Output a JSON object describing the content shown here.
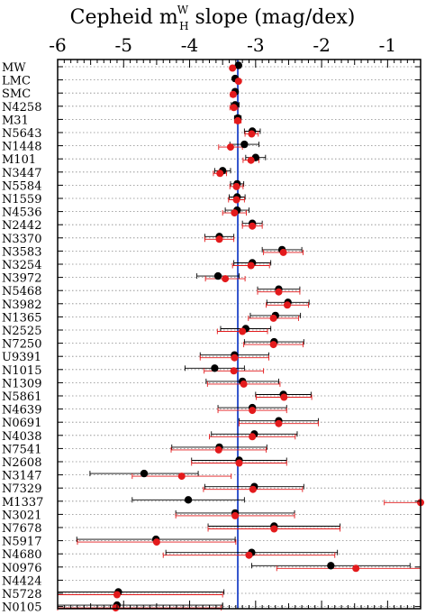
{
  "chart_data": {
    "type": "scatter",
    "title_parts": [
      "Cepheid m",
      "W",
      "H",
      " slope (mag/dex)"
    ],
    "xlim": [
      -6,
      -0.5
    ],
    "x_ticks": [
      "-6",
      "-5",
      "-4",
      "-3",
      "-2",
      "-1"
    ],
    "reference_line_x": -3.27,
    "grid": "dotted horizontal per galaxy",
    "colors": {
      "black": "#000000",
      "red": "#e31a1c",
      "line": "#3355cc",
      "grid": "#888888"
    },
    "categories": [
      "MW",
      "LMC",
      "SMC",
      "N4258",
      "M31",
      "N5643",
      "N1448",
      "M101",
      "N3447",
      "N5584",
      "N1559",
      "N4536",
      "N2442",
      "N3370",
      "N3583",
      "N3254",
      "N3972",
      "N5468",
      "N3982",
      "N1365",
      "N2525",
      "N7250",
      "U9391",
      "N1015",
      "N1309",
      "N5861",
      "N4639",
      "N0691",
      "N4038",
      "N7541",
      "N2608",
      "N3147",
      "N7329",
      "M1337",
      "N3021",
      "N7678",
      "N5917",
      "N4680",
      "N0976",
      "N4424",
      "N5728",
      "N0105"
    ],
    "series": [
      {
        "color": "black",
        "values": [
          -3.26,
          -3.31,
          -3.31,
          -3.31,
          -3.27,
          -3.05,
          -3.17,
          -3.0,
          -3.5,
          -3.28,
          -3.28,
          -3.28,
          -3.05,
          -3.55,
          -2.6,
          -3.05,
          -3.57,
          -2.65,
          -2.51,
          -2.7,
          -3.15,
          -2.72,
          -3.32,
          -3.62,
          -3.2,
          -2.58,
          -3.05,
          -2.65,
          -3.02,
          -3.55,
          -3.25,
          -4.69,
          -3.02,
          -4.02,
          -3.31,
          -2.72,
          -4.51,
          -3.06,
          -1.86,
          null,
          -5.08,
          -5.1
        ],
        "err_low": [
          0.03,
          0.03,
          0.04,
          0.06,
          0.05,
          0.12,
          0.22,
          0.15,
          0.12,
          0.1,
          0.12,
          0.18,
          0.15,
          0.22,
          0.3,
          0.28,
          0.32,
          0.32,
          0.32,
          0.38,
          0.38,
          0.45,
          0.52,
          0.45,
          0.55,
          0.42,
          0.52,
          0.6,
          0.65,
          0.72,
          0.72,
          0.82,
          0.75,
          0.85,
          0.9,
          1.0,
          1.2,
          1.3,
          1.2,
          null,
          1.6,
          1.6
        ],
        "err_high": [
          0.03,
          0.03,
          0.04,
          0.06,
          0.05,
          0.12,
          0.22,
          0.15,
          0.12,
          0.1,
          0.12,
          0.18,
          0.15,
          0.22,
          0.3,
          0.28,
          0.32,
          0.32,
          0.32,
          0.38,
          0.38,
          0.45,
          0.52,
          0.45,
          0.55,
          0.42,
          0.52,
          0.6,
          0.65,
          0.72,
          0.72,
          0.82,
          0.75,
          0.85,
          0.9,
          1.0,
          1.2,
          1.3,
          1.2,
          null,
          1.6,
          1.6
        ]
      },
      {
        "color": "red",
        "values": [
          -3.35,
          -3.26,
          -3.34,
          -3.33,
          -3.27,
          -3.06,
          -3.38,
          -3.07,
          -3.54,
          -3.29,
          -3.29,
          -3.32,
          -3.05,
          -3.55,
          -2.58,
          -3.07,
          -3.46,
          -2.65,
          -2.52,
          -2.73,
          -3.2,
          -2.73,
          -3.32,
          -3.33,
          -3.18,
          -2.57,
          -3.05,
          -2.65,
          -3.05,
          -3.56,
          -3.25,
          -4.12,
          -3.04,
          -0.5,
          -3.31,
          -2.72,
          -4.5,
          -3.1,
          -1.48,
          null,
          -5.1,
          -5.12
        ],
        "err_low": [
          0.03,
          0.03,
          0.04,
          0.06,
          0.05,
          0.1,
          0.18,
          0.12,
          0.1,
          0.1,
          0.12,
          0.18,
          0.15,
          0.22,
          0.3,
          0.28,
          0.3,
          0.32,
          0.32,
          0.38,
          0.38,
          0.45,
          0.52,
          0.45,
          0.55,
          0.42,
          0.52,
          0.6,
          0.65,
          0.72,
          0.72,
          0.75,
          0.75,
          0.55,
          0.9,
          1.0,
          1.2,
          1.3,
          1.2,
          null,
          1.6,
          1.6
        ],
        "err_high": [
          0.03,
          0.03,
          0.04,
          0.06,
          0.05,
          0.1,
          0.18,
          0.12,
          0.1,
          0.1,
          0.12,
          0.18,
          0.15,
          0.22,
          0.3,
          0.28,
          0.3,
          0.32,
          0.32,
          0.38,
          0.38,
          0.45,
          0.52,
          0.45,
          0.55,
          0.42,
          0.52,
          0.6,
          0.65,
          0.72,
          0.72,
          0.75,
          0.75,
          0.55,
          0.9,
          1.0,
          1.2,
          1.3,
          1.2,
          null,
          1.6,
          1.6
        ]
      }
    ]
  }
}
